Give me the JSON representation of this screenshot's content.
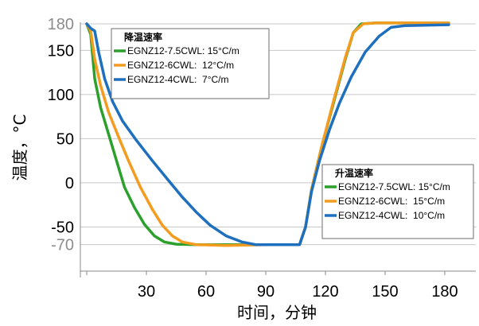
{
  "chart_data": {
    "type": "line",
    "xlabel": "时间，分钟",
    "ylabel": "温度，°C",
    "xlim": [
      0,
      190
    ],
    "ylim": [
      -100,
      180
    ],
    "xticks": [
      30,
      60,
      90,
      120,
      150,
      180
    ],
    "yticks": [
      {
        "value": 180,
        "label": "180",
        "highlight": true
      },
      {
        "value": 150,
        "label": "150",
        "highlight": false
      },
      {
        "value": 100,
        "label": "100",
        "highlight": false
      },
      {
        "value": 50,
        "label": "50",
        "highlight": false
      },
      {
        "value": 0,
        "label": "0",
        "highlight": false
      },
      {
        "value": -50,
        "label": "-50",
        "highlight": false
      },
      {
        "value": -70,
        "label": "-70",
        "highlight": true
      }
    ],
    "gridlines_y": [
      180,
      150,
      100,
      50,
      0,
      -50,
      -70,
      -100
    ],
    "grid": true,
    "legends": [
      {
        "title": "降温速率",
        "placement": "top-left",
        "entries": [
          {
            "series": 0,
            "label": "EGNZ12-7.5CWL: 15°C/m"
          },
          {
            "series": 1,
            "label": "EGNZ12-6CWL:  12°C/m"
          },
          {
            "series": 2,
            "label": "EGNZ12-4CWL:  7°C/m"
          }
        ]
      },
      {
        "title": "升温速率",
        "placement": "middle-right",
        "entries": [
          {
            "series": 0,
            "label": "EGNZ12-7.5CWL: 15°C/m"
          },
          {
            "series": 1,
            "label": "EGNZ12-6CWL:  15°C/m"
          },
          {
            "series": 2,
            "label": "EGNZ12-4CWL:  10°C/m"
          }
        ]
      }
    ],
    "series": [
      {
        "color": "#2ca02c",
        "points": [
          [
            0,
            180
          ],
          [
            2,
            168
          ],
          [
            4,
            118
          ],
          [
            7,
            85
          ],
          [
            11,
            55
          ],
          [
            15,
            25
          ],
          [
            19,
            -5
          ],
          [
            24,
            -28
          ],
          [
            29,
            -47
          ],
          [
            34,
            -60
          ],
          [
            39,
            -67
          ],
          [
            45,
            -69.5
          ],
          [
            55,
            -70
          ],
          [
            75,
            -70
          ],
          [
            90,
            -70
          ],
          [
            100,
            -70
          ],
          [
            107,
            -70
          ],
          [
            110,
            -50
          ],
          [
            113,
            -8
          ],
          [
            118,
            40
          ],
          [
            124,
            90
          ],
          [
            130,
            140
          ],
          [
            134,
            170
          ],
          [
            138,
            180
          ],
          [
            145,
            181
          ],
          [
            182,
            181
          ]
        ]
      },
      {
        "color": "#f39c1f",
        "points": [
          [
            0,
            180
          ],
          [
            2,
            172
          ],
          [
            4,
            140
          ],
          [
            7,
            110
          ],
          [
            11,
            80
          ],
          [
            16,
            52
          ],
          [
            21,
            25
          ],
          [
            27,
            -5
          ],
          [
            33,
            -30
          ],
          [
            38,
            -48
          ],
          [
            43,
            -60
          ],
          [
            48,
            -67
          ],
          [
            55,
            -70
          ],
          [
            70,
            -71
          ],
          [
            90,
            -70
          ],
          [
            100,
            -70
          ],
          [
            107,
            -70
          ],
          [
            110,
            -50
          ],
          [
            113,
            -8
          ],
          [
            118,
            40
          ],
          [
            124,
            92
          ],
          [
            130,
            142
          ],
          [
            134,
            170
          ],
          [
            139,
            180
          ],
          [
            145,
            181
          ],
          [
            182,
            181
          ]
        ]
      },
      {
        "color": "#1f6fbf",
        "points": [
          [
            0,
            180
          ],
          [
            2,
            175
          ],
          [
            4,
            172
          ],
          [
            6,
            148
          ],
          [
            9,
            118
          ],
          [
            13,
            92
          ],
          [
            18,
            70
          ],
          [
            25,
            48
          ],
          [
            33,
            25
          ],
          [
            41,
            3
          ],
          [
            48,
            -16
          ],
          [
            55,
            -33
          ],
          [
            62,
            -48
          ],
          [
            70,
            -60
          ],
          [
            78,
            -67
          ],
          [
            85,
            -70
          ],
          [
            95,
            -70
          ],
          [
            107,
            -70
          ],
          [
            110,
            -50
          ],
          [
            113,
            -10
          ],
          [
            117,
            25
          ],
          [
            122,
            60
          ],
          [
            127,
            90
          ],
          [
            133,
            120
          ],
          [
            140,
            148
          ],
          [
            147,
            166
          ],
          [
            153,
            176
          ],
          [
            160,
            178
          ],
          [
            182,
            179
          ]
        ]
      }
    ]
  }
}
